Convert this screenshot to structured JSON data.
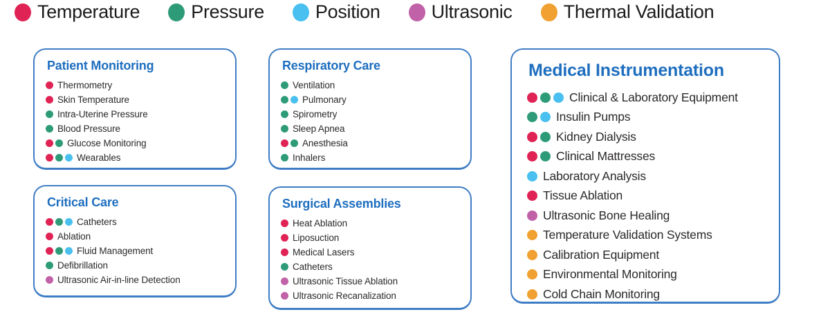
{
  "dot_colors": {
    "temperature": "#e02355",
    "pressure": "#2e9b78",
    "position": "#49c0ef",
    "ultrasonic": "#c161a8",
    "thermal": "#f0a132"
  },
  "colors": {
    "title_blue": "#1e6ebf",
    "border_blue": "#3e7dc4",
    "text": "#2b2829"
  },
  "legend": {
    "items": [
      {
        "key": "temperature",
        "label": "Temperature"
      },
      {
        "key": "pressure",
        "label": "Pressure"
      },
      {
        "key": "position",
        "label": "Position"
      },
      {
        "key": "ultrasonic",
        "label": "Ultrasonic"
      },
      {
        "key": "thermal",
        "label": "Thermal Validation"
      }
    ]
  },
  "cards": [
    {
      "id": "patient-monitoring",
      "title": "Patient Monitoring",
      "size": "small",
      "items": [
        {
          "label": "Thermometry",
          "dots": [
            "temperature"
          ]
        },
        {
          "label": "Skin Temperature",
          "dots": [
            "temperature"
          ]
        },
        {
          "label": "Intra-Uterine Pressure",
          "dots": [
            "pressure"
          ]
        },
        {
          "label": "Blood Pressure",
          "dots": [
            "pressure"
          ]
        },
        {
          "label": "Glucose Monitoring",
          "dots": [
            "temperature",
            "pressure"
          ]
        },
        {
          "label": "Wearables",
          "dots": [
            "temperature",
            "pressure",
            "position"
          ]
        }
      ]
    },
    {
      "id": "critical-care",
      "title": "Critical Care",
      "size": "small",
      "items": [
        {
          "label": "Catheters",
          "dots": [
            "temperature",
            "pressure",
            "position"
          ]
        },
        {
          "label": "Ablation",
          "dots": [
            "temperature"
          ]
        },
        {
          "label": "Fluid Management",
          "dots": [
            "temperature",
            "pressure",
            "position"
          ]
        },
        {
          "label": "Defibrillation",
          "dots": [
            "pressure"
          ]
        },
        {
          "label": "Ultrasonic Air-in-line Detection",
          "dots": [
            "ultrasonic"
          ]
        }
      ]
    },
    {
      "id": "respiratory-care",
      "title": "Respiratory Care",
      "size": "small",
      "items": [
        {
          "label": "Ventilation",
          "dots": [
            "pressure"
          ]
        },
        {
          "label": "Pulmonary",
          "dots": [
            "pressure",
            "position"
          ]
        },
        {
          "label": "Spirometry",
          "dots": [
            "pressure"
          ]
        },
        {
          "label": "Sleep Apnea",
          "dots": [
            "pressure"
          ]
        },
        {
          "label": "Anesthesia",
          "dots": [
            "temperature",
            "pressure"
          ]
        },
        {
          "label": "Inhalers",
          "dots": [
            "pressure"
          ]
        }
      ]
    },
    {
      "id": "surgical-assemblies",
      "title": "Surgical Assemblies",
      "size": "small",
      "items": [
        {
          "label": "Heat Ablation",
          "dots": [
            "temperature"
          ]
        },
        {
          "label": "Liposuction",
          "dots": [
            "temperature"
          ]
        },
        {
          "label": "Medical Lasers",
          "dots": [
            "temperature"
          ]
        },
        {
          "label": "Catheters",
          "dots": [
            "pressure"
          ]
        },
        {
          "label": "Ultrasonic Tissue Ablation",
          "dots": [
            "ultrasonic"
          ]
        },
        {
          "label": "Ultrasonic Recanalization",
          "dots": [
            "ultrasonic"
          ]
        }
      ]
    },
    {
      "id": "medical-instrumentation",
      "title": "Medical Instrumentation",
      "size": "large",
      "items": [
        {
          "label": "Clinical & Laboratory Equipment",
          "dots": [
            "temperature",
            "pressure",
            "position"
          ]
        },
        {
          "label": "Insulin Pumps",
          "dots": [
            "pressure",
            "position"
          ]
        },
        {
          "label": "Kidney Dialysis",
          "dots": [
            "temperature",
            "pressure"
          ]
        },
        {
          "label": "Clinical Mattresses",
          "dots": [
            "temperature",
            "pressure"
          ]
        },
        {
          "label": "Laboratory Analysis",
          "dots": [
            "position"
          ]
        },
        {
          "label": "Tissue Ablation",
          "dots": [
            "temperature"
          ]
        },
        {
          "label": "Ultrasonic Bone Healing",
          "dots": [
            "ultrasonic"
          ]
        },
        {
          "label": "Temperature Validation Systems",
          "dots": [
            "thermal"
          ]
        },
        {
          "label": "Calibration Equipment",
          "dots": [
            "thermal"
          ]
        },
        {
          "label": "Environmental Monitoring",
          "dots": [
            "thermal"
          ]
        },
        {
          "label": "Cold Chain Monitoring",
          "dots": [
            "thermal"
          ]
        }
      ]
    }
  ]
}
